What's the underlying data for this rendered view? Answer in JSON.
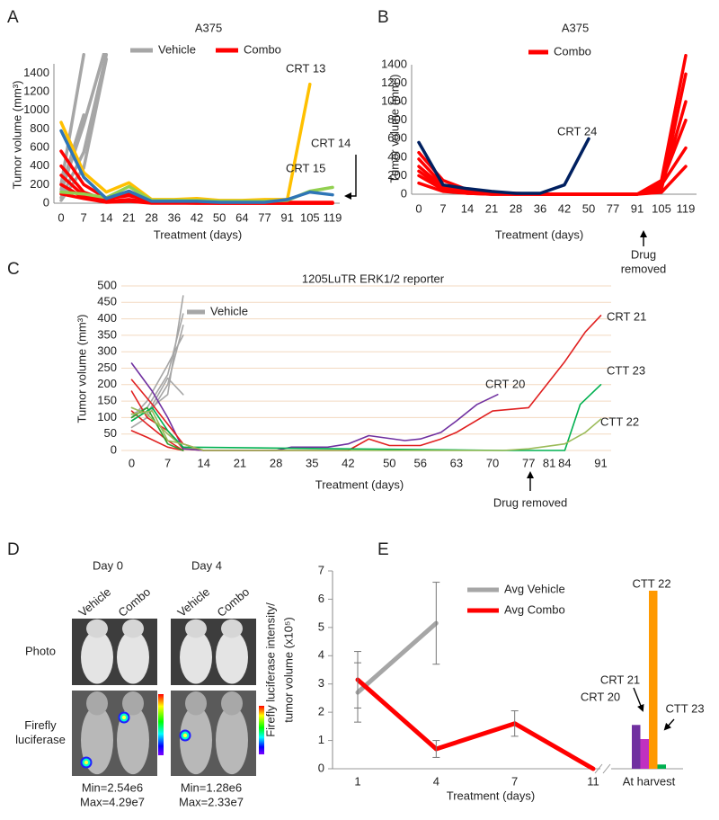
{
  "chart_data": [
    {
      "panel": "A",
      "type": "line",
      "title": "A375",
      "x_label": "Treatment (days)",
      "y_label": "Tumor volume (mm³)",
      "categories": [
        0,
        7,
        14,
        21,
        28,
        36,
        42,
        50,
        64,
        77,
        91,
        105,
        119
      ],
      "ylim": [
        0,
        1500
      ],
      "yticks": [
        0,
        200,
        400,
        600,
        800,
        1000,
        1200,
        1400
      ],
      "series": [
        {
          "name": "Vehicle",
          "color": "#a6a6a6",
          "lines": [
            [
              60,
              550,
              1600,
              null,
              null,
              null,
              null,
              null,
              null,
              null,
              null,
              null,
              null
            ],
            [
              120,
              850,
              1700,
              null,
              null,
              null,
              null,
              null,
              null,
              null,
              null,
              null,
              null
            ],
            [
              200,
              1600,
              null,
              null,
              null,
              null,
              null,
              null,
              null,
              null,
              null,
              null,
              null
            ],
            [
              30,
              380,
              1550,
              null,
              null,
              null,
              null,
              null,
              null,
              null,
              null,
              null,
              null
            ],
            [
              150,
              950,
              null,
              null,
              null,
              null,
              null,
              null,
              null,
              null,
              null,
              null,
              null
            ]
          ]
        },
        {
          "name": "Combo",
          "color": "#ff0000",
          "lines": [
            [
              560,
              200,
              50,
              80,
              30,
              20,
              10,
              10,
              10,
              10,
              10,
              10,
              10
            ],
            [
              400,
              120,
              30,
              130,
              20,
              10,
              5,
              5,
              5,
              5,
              5,
              5,
              5
            ],
            [
              300,
              80,
              20,
              40,
              10,
              5,
              0,
              0,
              0,
              0,
              0,
              0,
              0
            ],
            [
              200,
              60,
              60,
              100,
              20,
              10,
              5,
              0,
              0,
              0,
              0,
              0,
              0
            ],
            [
              100,
              50,
              10,
              20,
              0,
              0,
              0,
              0,
              0,
              0,
              0,
              0,
              0
            ]
          ]
        }
      ],
      "highlighted": [
        {
          "name": "CRT 13",
          "color": "#ffc000",
          "values": [
            870,
            330,
            120,
            220,
            40,
            40,
            50,
            30,
            30,
            40,
            40,
            1280,
            null
          ]
        },
        {
          "name": "CRT 14",
          "color": "#92d050",
          "values": [
            120,
            100,
            60,
            180,
            30,
            30,
            30,
            20,
            20,
            20,
            30,
            130,
            170
          ]
        },
        {
          "name": "CRT 15",
          "color": "#2e75b6",
          "values": [
            780,
            280,
            50,
            130,
            20,
            20,
            20,
            10,
            10,
            10,
            40,
            120,
            90
          ]
        }
      ]
    },
    {
      "panel": "B",
      "type": "line",
      "title": "A375",
      "x_label": "Treatment (days)",
      "y_label": "Tumor volume (mm³)",
      "categories": [
        0,
        7,
        14,
        21,
        28,
        36,
        42,
        50,
        77,
        91,
        105,
        119
      ],
      "ylim": [
        0,
        1400
      ],
      "yticks": [
        0,
        200,
        400,
        600,
        800,
        1000,
        1200,
        1400
      ],
      "series": [
        {
          "name": "Combo",
          "color": "#ff0000",
          "lines": [
            [
              450,
              150,
              50,
              20,
              10,
              0,
              0,
              0,
              0,
              0,
              150,
              1500
            ],
            [
              380,
              100,
              40,
              20,
              5,
              0,
              0,
              0,
              0,
              0,
              80,
              1000
            ],
            [
              300,
              80,
              40,
              10,
              0,
              0,
              0,
              0,
              0,
              0,
              120,
              800
            ],
            [
              250,
              60,
              20,
              0,
              0,
              0,
              0,
              0,
              0,
              0,
              50,
              1300
            ],
            [
              200,
              50,
              10,
              0,
              0,
              0,
              0,
              0,
              0,
              0,
              100,
              500
            ],
            [
              120,
              30,
              10,
              0,
              0,
              0,
              0,
              0,
              0,
              0,
              20,
              300
            ]
          ]
        }
      ],
      "highlighted": [
        {
          "name": "CRT 24",
          "color": "#002060",
          "values": [
            560,
            100,
            60,
            30,
            10,
            10,
            100,
            600,
            null,
            null,
            null,
            null
          ]
        }
      ],
      "note": [
        "Drug",
        "removed"
      ]
    },
    {
      "panel": "C",
      "type": "line",
      "title": "1205LuTR ERK1/2 reporter",
      "x_label": "Treatment (days)",
      "y_label": "Tumor volume (mm³)",
      "xlim": [
        -2,
        93
      ],
      "xticks": [
        0,
        7,
        14,
        21,
        28,
        35,
        42,
        50,
        56,
        63,
        70,
        77,
        81,
        84,
        91
      ],
      "ylim": [
        0,
        500
      ],
      "yticks": [
        0,
        50,
        100,
        150,
        200,
        250,
        300,
        350,
        400,
        450,
        500
      ],
      "grid": true,
      "grid_color": "#f3d9c0",
      "series": [
        {
          "name": "Vehicle",
          "color": "#a6a6a6",
          "lines": [
            {
              "x": [
                0,
                3,
                7,
                10
              ],
              "values": [
                90,
                120,
                170,
                470
              ]
            },
            {
              "x": [
                0,
                3,
                7,
                10
              ],
              "values": [
                110,
                130,
                230,
                415
              ]
            },
            {
              "x": [
                0,
                3,
                7,
                10
              ],
              "values": [
                70,
                100,
                200,
                380
              ]
            },
            {
              "x": [
                0,
                3,
                7,
                10
              ],
              "values": [
                100,
                150,
                260,
                350
              ]
            },
            {
              "x": [
                0,
                3,
                7,
                10
              ],
              "values": [
                130,
                110,
                220,
                170
              ]
            }
          ]
        }
      ],
      "other_lines": [
        {
          "color": "#e02020",
          "x": [
            0,
            3,
            7,
            10,
            14
          ],
          "values": [
            180,
            100,
            60,
            5,
            0
          ]
        },
        {
          "color": "#e02020",
          "x": [
            0,
            3,
            7,
            10
          ],
          "values": [
            120,
            80,
            30,
            0
          ]
        },
        {
          "color": "#e02020",
          "x": [
            0,
            3,
            7,
            10
          ],
          "values": [
            60,
            40,
            10,
            0
          ]
        },
        {
          "color": "#2ca02c",
          "x": [
            0,
            3,
            7,
            10
          ],
          "values": [
            100,
            130,
            20,
            0
          ]
        },
        {
          "color": "#9bbb59",
          "x": [
            0,
            3,
            7,
            10,
            14
          ],
          "values": [
            130,
            110,
            50,
            10,
            0
          ]
        }
      ],
      "highlighted": [
        {
          "name": "CRT 20",
          "color": "#7030a0",
          "x": [
            0,
            4,
            7,
            10,
            14,
            28,
            31,
            38,
            42,
            46,
            53,
            56,
            60,
            63,
            67,
            71
          ],
          "values": [
            265,
            180,
            100,
            5,
            0,
            0,
            10,
            10,
            20,
            45,
            30,
            35,
            55,
            90,
            140,
            170
          ]
        },
        {
          "name": "CRT 21",
          "color": "#e02020",
          "x": [
            0,
            4,
            7,
            10,
            14,
            42,
            46,
            50,
            53,
            56,
            60,
            63,
            70,
            77,
            84,
            88,
            91
          ],
          "values": [
            215,
            140,
            80,
            20,
            0,
            0,
            35,
            15,
            15,
            15,
            35,
            55,
            120,
            130,
            270,
            360,
            410
          ]
        },
        {
          "name": "CTT 23",
          "color": "#00b050",
          "x": [
            0,
            4,
            7,
            10,
            72,
            84,
            87,
            91
          ],
          "values": [
            90,
            130,
            60,
            10,
            0,
            0,
            140,
            200
          ]
        },
        {
          "name": "CTT 22",
          "color": "#9bbb59",
          "x": [
            0,
            4,
            7,
            10,
            14,
            72,
            77,
            84,
            88,
            91
          ],
          "values": [
            110,
            120,
            30,
            20,
            0,
            0,
            5,
            20,
            55,
            95
          ]
        }
      ],
      "note": "Drug removed"
    },
    {
      "panel": "E",
      "type": "line",
      "x_label": "Treatment (days)",
      "y_label": [
        "Firefly luciferase intensity/",
        "tumor volume (x10⁵)"
      ],
      "categories": [
        "1",
        "4",
        "7",
        "11"
      ],
      "ylim": [
        0,
        7
      ],
      "yticks": [
        0,
        1,
        2,
        3,
        4,
        5,
        6,
        7
      ],
      "series": [
        {
          "name": "Avg Vehicle",
          "color": "#a6a6a6",
          "values": [
            2.7,
            5.15,
            null,
            null
          ],
          "errors": [
            1.05,
            1.45,
            null,
            null
          ]
        },
        {
          "name": "Avg Combo",
          "color": "#ff0000",
          "values": [
            3.15,
            0.7,
            1.6,
            0
          ],
          "errors": [
            1.0,
            0.3,
            0.45,
            null
          ]
        }
      ],
      "bars": {
        "label": "At harvest",
        "categories": [
          "CRT 20",
          "CRT 21",
          "CTT 22",
          "CTT 23"
        ],
        "values": [
          1.55,
          1.05,
          6.3,
          0.15
        ],
        "colors": [
          "#7030a0",
          "#c030c0",
          "#ff9900",
          "#00b050"
        ]
      }
    }
  ],
  "imaging": {
    "panel": "D",
    "days": [
      {
        "label": "Day 0",
        "groups": [
          "Vehicle",
          "Combo"
        ],
        "scale": [
          "Min=2.54e6",
          "Max=4.29e7"
        ]
      },
      {
        "label": "Day 4",
        "groups": [
          "Vehicle",
          "Combo"
        ],
        "scale": [
          "Min=1.28e6",
          "Max=2.33e7"
        ]
      }
    ],
    "rows": [
      [
        "Photo"
      ],
      [
        "Firefly",
        "luciferase"
      ]
    ]
  }
}
